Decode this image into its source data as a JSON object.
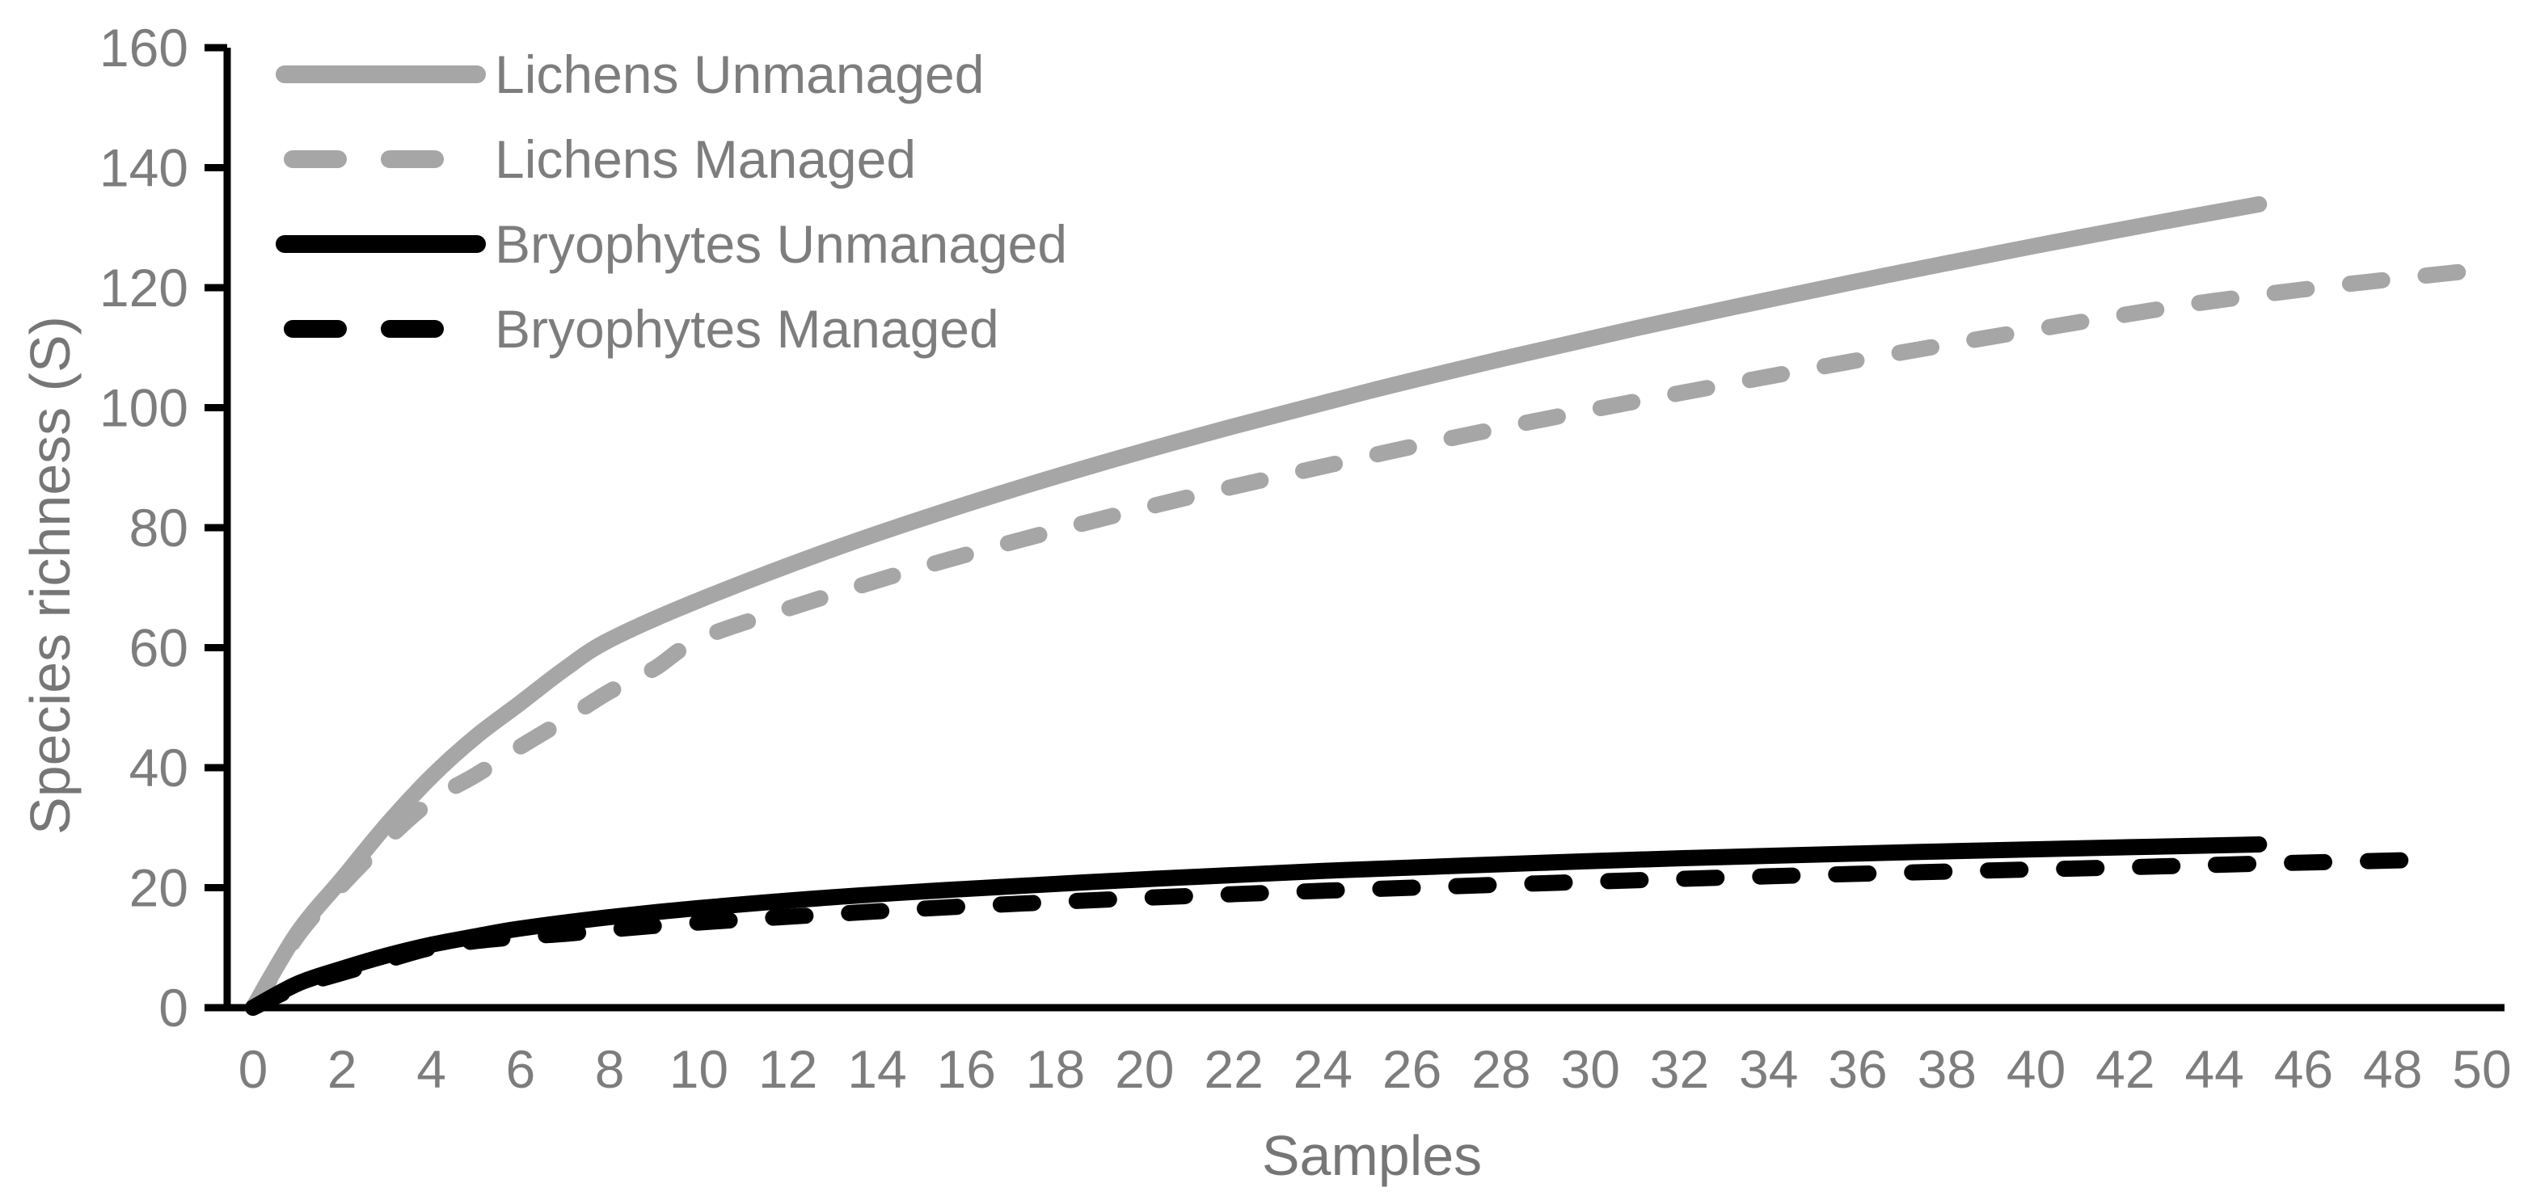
{
  "chart_data": {
    "type": "line",
    "title": "",
    "xlabel": "Samples",
    "ylabel": "Species richness (S)",
    "xlim": [
      0,
      50
    ],
    "ylim": [
      0,
      160
    ],
    "x_ticks": [
      0,
      2,
      4,
      6,
      8,
      10,
      12,
      14,
      16,
      18,
      20,
      22,
      24,
      26,
      28,
      30,
      32,
      34,
      36,
      38,
      40,
      42,
      44,
      46,
      48,
      50
    ],
    "y_ticks": [
      0,
      20,
      40,
      60,
      80,
      100,
      120,
      140,
      160
    ],
    "grid": false,
    "legend_position": "top-left-inside",
    "series": [
      {
        "name": "Lichens Unmanaged",
        "color": "#a6a6a6",
        "style": "solid",
        "points": [
          [
            0,
            0
          ],
          [
            1,
            12.5
          ],
          [
            2,
            21.5
          ],
          [
            3,
            30.5
          ],
          [
            4,
            38.5
          ],
          [
            5,
            45.2
          ],
          [
            6,
            50.8
          ],
          [
            7,
            56.5
          ],
          [
            8,
            61.3
          ],
          [
            10,
            67.9
          ],
          [
            13,
            76.4
          ],
          [
            16,
            83.9
          ],
          [
            19,
            90.7
          ],
          [
            22,
            96.9
          ],
          [
            25,
            102.7
          ],
          [
            28,
            108.1
          ],
          [
            31,
            113.2
          ],
          [
            34,
            118
          ],
          [
            37,
            122.6
          ],
          [
            40,
            127
          ],
          [
            43,
            131.2
          ],
          [
            45,
            133.9
          ]
        ]
      },
      {
        "name": "Lichens Managed",
        "color": "#a6a6a6",
        "style": "dashed",
        "points": [
          [
            0,
            0
          ],
          [
            1,
            12
          ],
          [
            2,
            20.5
          ],
          [
            3,
            28
          ],
          [
            4,
            34.5
          ],
          [
            5,
            38.8
          ],
          [
            6,
            43.5
          ],
          [
            7,
            48
          ],
          [
            8,
            52.7
          ],
          [
            9,
            56.5
          ],
          [
            10,
            61.4
          ],
          [
            12,
            66.5
          ],
          [
            15,
            73.4
          ],
          [
            18,
            79.5
          ],
          [
            21,
            85.1
          ],
          [
            24,
            90.2
          ],
          [
            27,
            95.1
          ],
          [
            30,
            99.6
          ],
          [
            33,
            103.8
          ],
          [
            36,
            107.9
          ],
          [
            39,
            111.8
          ],
          [
            42,
            115.5
          ],
          [
            44,
            117.8
          ],
          [
            47,
            120.6
          ],
          [
            50,
            123
          ]
        ]
      },
      {
        "name": "Bryophytes Unmanaged",
        "color": "#000000",
        "style": "solid",
        "points": [
          [
            0,
            0
          ],
          [
            1,
            4
          ],
          [
            2,
            6.5
          ],
          [
            3,
            8.7
          ],
          [
            4,
            10.5
          ],
          [
            5,
            11.9
          ],
          [
            6,
            13.2
          ],
          [
            8,
            15.1
          ],
          [
            10,
            16.6
          ],
          [
            13,
            18.4
          ],
          [
            16,
            19.8
          ],
          [
            20,
            21.4
          ],
          [
            24,
            22.8
          ],
          [
            28,
            23.9
          ],
          [
            32,
            24.9
          ],
          [
            36,
            25.7
          ],
          [
            40,
            26.4
          ],
          [
            45,
            27.2
          ]
        ]
      },
      {
        "name": "Bryophytes Managed",
        "color": "#000000",
        "style": "dashed",
        "points": [
          [
            0,
            0
          ],
          [
            1,
            3.5
          ],
          [
            2,
            5.8
          ],
          [
            3,
            7.9
          ],
          [
            4,
            10
          ],
          [
            5,
            11.1
          ],
          [
            6,
            11.8
          ],
          [
            7,
            12.3
          ],
          [
            8,
            13
          ],
          [
            10,
            14.2
          ],
          [
            13,
            15.6
          ],
          [
            16,
            16.9
          ],
          [
            20,
            18.3
          ],
          [
            23,
            19.2
          ],
          [
            26,
            20
          ],
          [
            30,
            21
          ],
          [
            34,
            21.9
          ],
          [
            38,
            22.7
          ],
          [
            42,
            23.4
          ],
          [
            45,
            24
          ],
          [
            49,
            24.7
          ]
        ]
      }
    ]
  },
  "colors": {
    "axis": "#000000",
    "tick_label": "#7d7d7d",
    "axis_title": "#767676",
    "legend_text": "#7d7d7d",
    "background": "#ffffff"
  }
}
